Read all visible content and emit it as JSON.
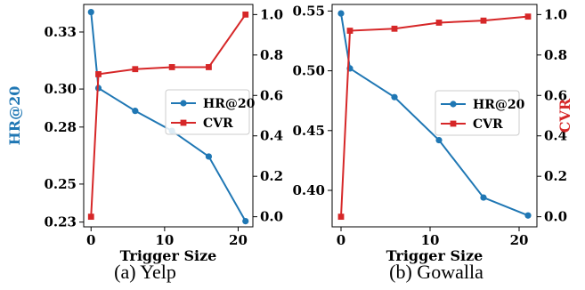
{
  "colors": {
    "hr": "#1f77b4",
    "cvr": "#d62728",
    "hr_axis": "#1f77b4",
    "cvr_axis": "#d62728"
  },
  "chart_data": [
    {
      "type": "line",
      "caption": "(a) Yelp",
      "xlabel": "Trigger Size",
      "ylabel_left": "HR@20",
      "ylabel_right": "",
      "xlim": [
        -1,
        22
      ],
      "ylim_left": [
        0.2275,
        0.3445
      ],
      "ylim_right": [
        -0.05,
        1.05
      ],
      "xticks": [
        0,
        10,
        20
      ],
      "yticks_left": [
        0.23,
        0.25,
        0.28,
        0.3,
        0.33
      ],
      "yticks_left_labels": [
        "0.23",
        "0.25",
        "0.28",
        "0.30",
        "0.33"
      ],
      "yticks_right": [
        0.0,
        0.2,
        0.4,
        0.6,
        0.8,
        1.0
      ],
      "yticks_right_labels": [
        "0.0",
        "0.2",
        "0.4",
        "0.6",
        "0.8",
        "1.0"
      ],
      "legend_position": "center-right",
      "x": [
        0,
        1,
        6,
        11,
        16,
        21
      ],
      "series": [
        {
          "name": "HR@20",
          "axis": "left",
          "marker": "circle",
          "values": [
            0.3405,
            0.3005,
            0.2885,
            0.278,
            0.2645,
            0.2305
          ]
        },
        {
          "name": "CVR",
          "axis": "right",
          "marker": "square",
          "values": [
            0.0,
            0.705,
            0.73,
            0.74,
            0.74,
            1.0
          ]
        }
      ]
    },
    {
      "type": "line",
      "caption": "(b) Gowalla",
      "xlabel": "Trigger Size",
      "ylabel_left": "",
      "ylabel_right": "CVR",
      "xlim": [
        -1,
        22
      ],
      "ylim_left": [
        0.3695,
        0.5555
      ],
      "ylim_right": [
        -0.05,
        1.05
      ],
      "xticks": [
        0,
        10,
        20
      ],
      "yticks_left": [
        0.4,
        0.45,
        0.5,
        0.55
      ],
      "yticks_left_labels": [
        "0.40",
        "0.45",
        "0.50",
        "0.55"
      ],
      "yticks_right": [
        0.0,
        0.2,
        0.4,
        0.6,
        0.8,
        1.0
      ],
      "yticks_right_labels": [
        "0.0",
        "0.2",
        "0.4",
        "0.6",
        "0.8",
        "1.0"
      ],
      "legend_position": "center-right",
      "x": [
        0,
        1,
        6,
        11,
        16,
        21
      ],
      "series": [
        {
          "name": "HR@20",
          "axis": "left",
          "marker": "circle",
          "values": [
            0.548,
            0.502,
            0.478,
            0.442,
            0.394,
            0.379
          ]
        },
        {
          "name": "CVR",
          "axis": "right",
          "marker": "square",
          "values": [
            0.0,
            0.92,
            0.93,
            0.96,
            0.97,
            0.99
          ]
        }
      ]
    }
  ]
}
